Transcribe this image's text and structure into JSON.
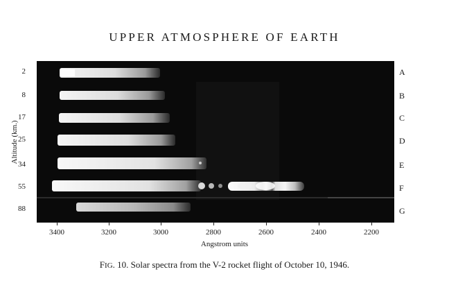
{
  "page": {
    "title": "UPPER ATMOSPHERE OF EARTH"
  },
  "figure": {
    "y_axis_label": "Altitude (km.)",
    "x_axis_label": "Angstrom units",
    "x_axis_ticks": [
      "3400",
      "3200",
      "3000",
      "2800",
      "2600",
      "2400",
      "2200"
    ],
    "rows": [
      {
        "altitude": "2",
        "letter": "A"
      },
      {
        "altitude": "8",
        "letter": "B"
      },
      {
        "altitude": "17",
        "letter": "C"
      },
      {
        "altitude": "25",
        "letter": "D"
      },
      {
        "altitude": "34",
        "letter": "E"
      },
      {
        "altitude": "55",
        "letter": "F"
      },
      {
        "altitude": "88",
        "letter": "G"
      }
    ]
  },
  "caption": {
    "prefix_initial": "F",
    "prefix_rest": "IG",
    "text": ". 10. Solar spectra from the V-2 rocket flight of October 10, 1946."
  }
}
